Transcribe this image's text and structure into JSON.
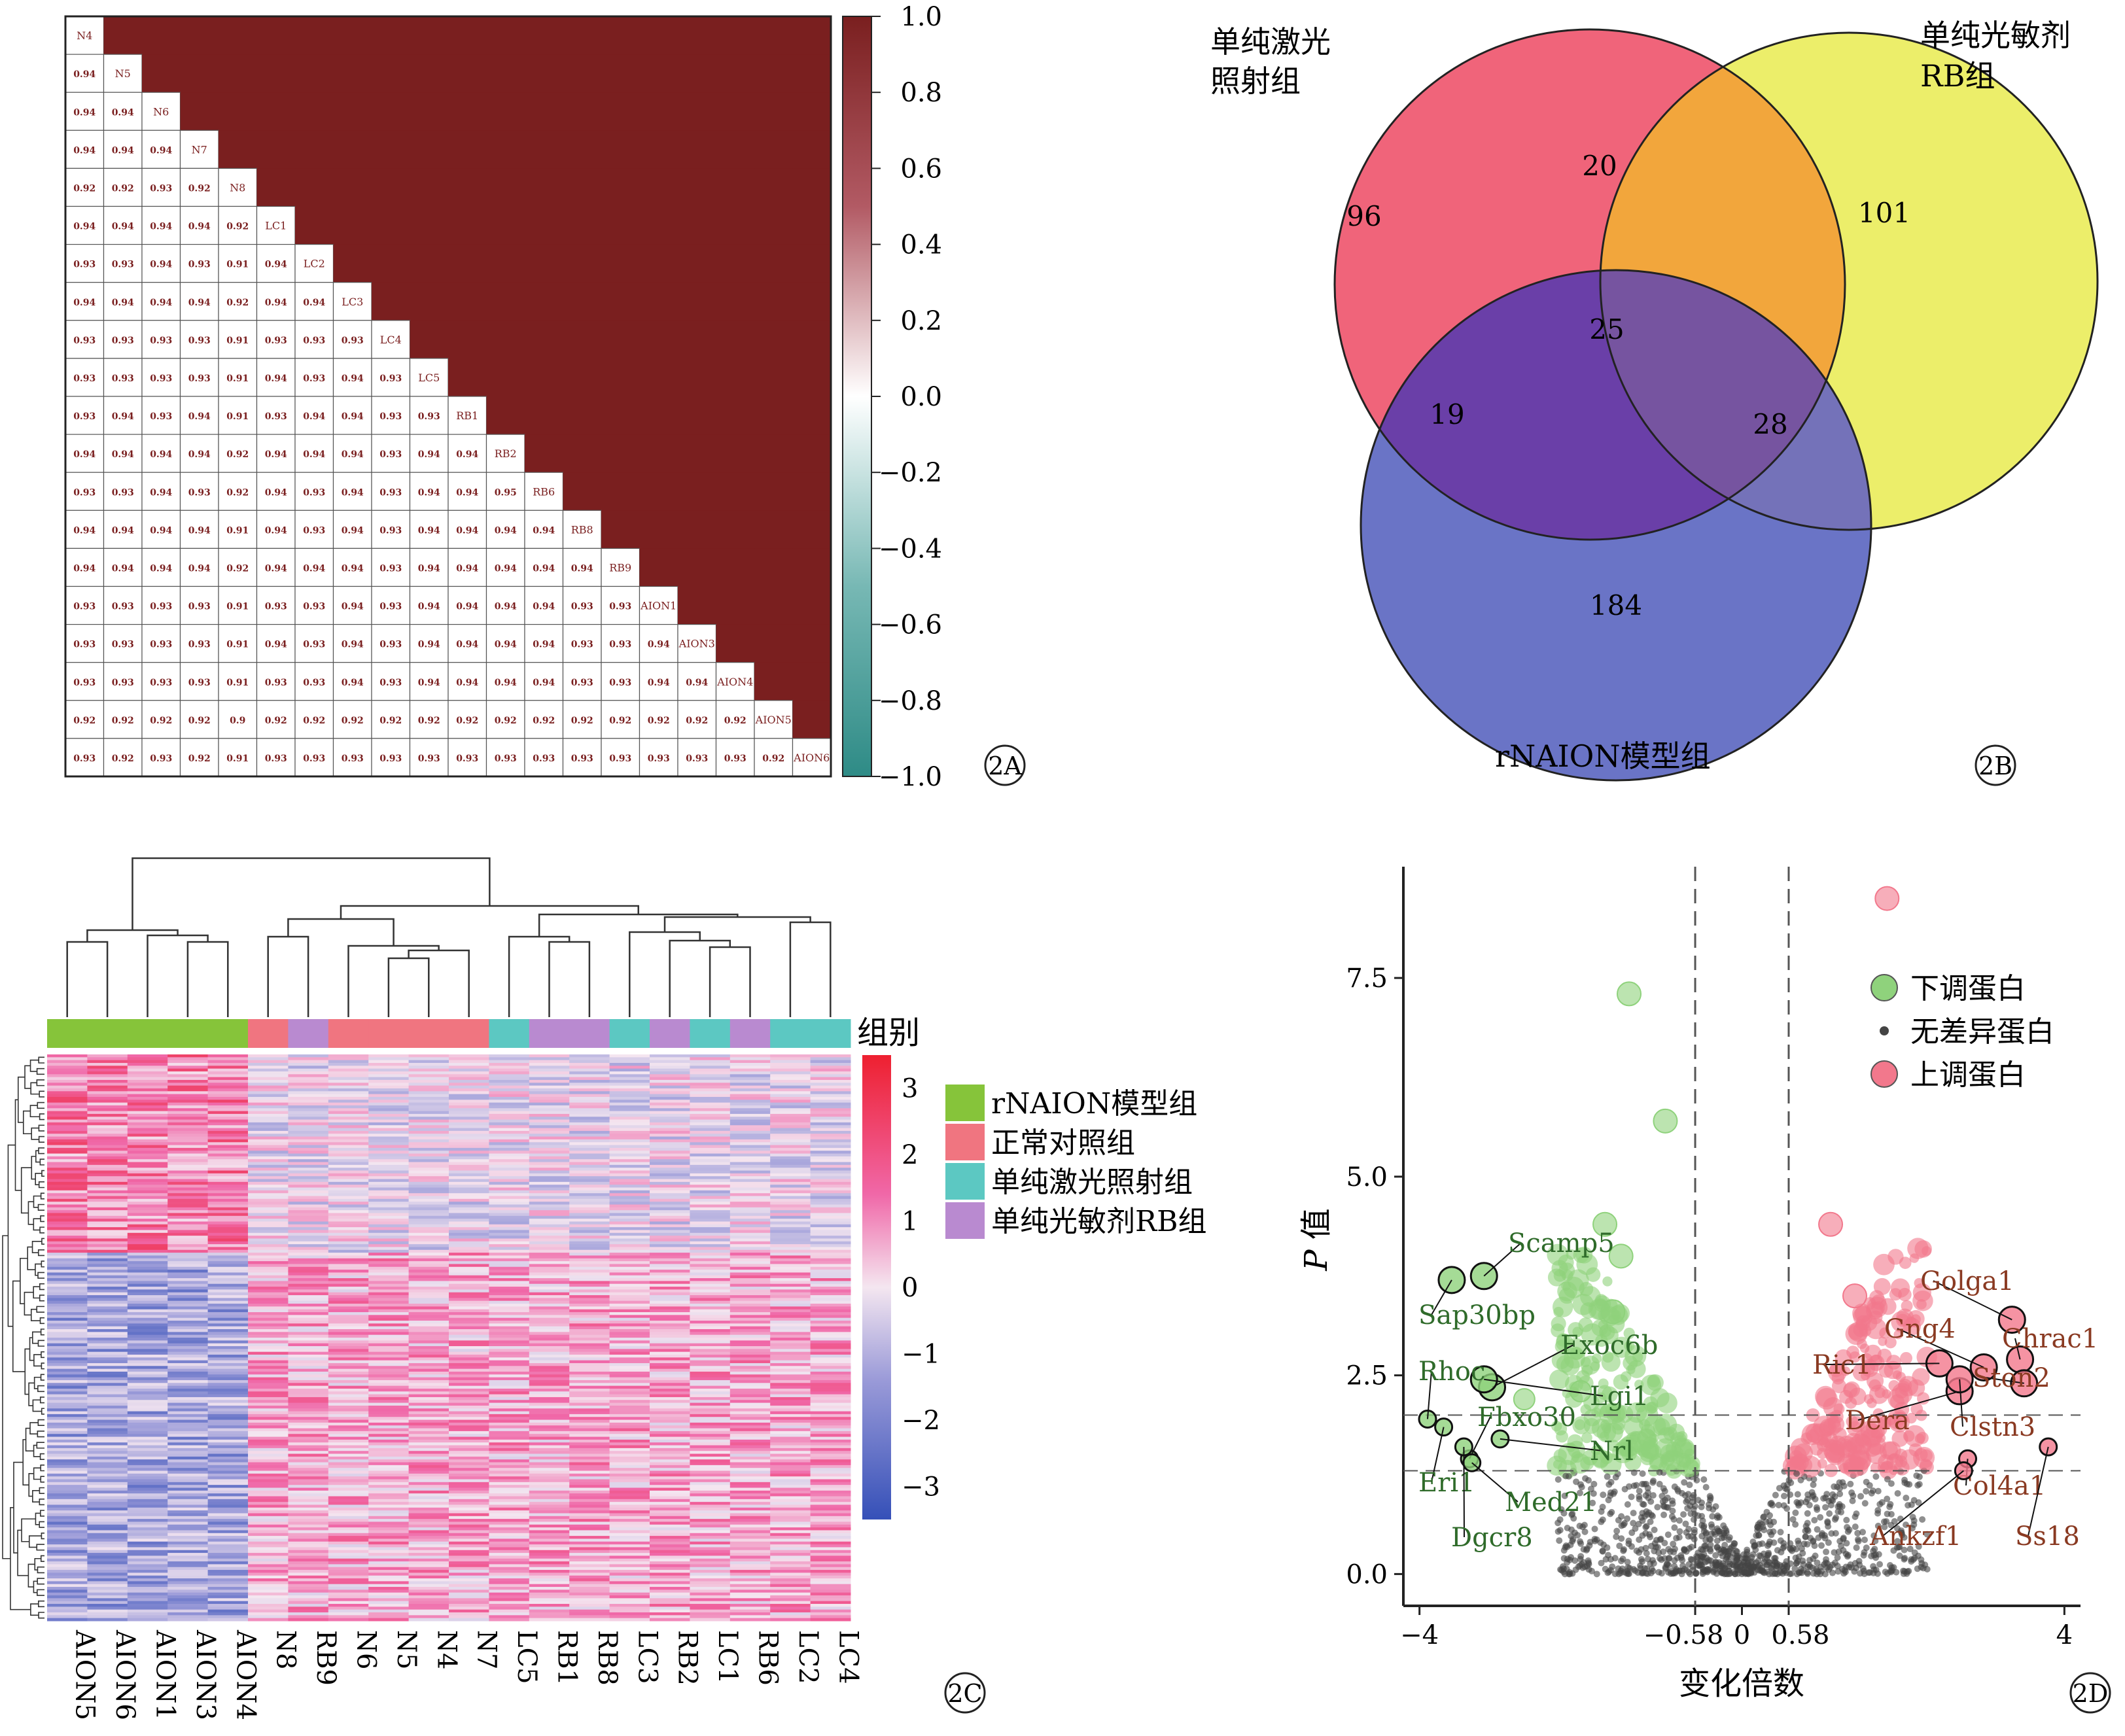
{
  "panels": {
    "A": "2A",
    "B": "2B",
    "C": "2C",
    "D": "2D"
  },
  "chart_data": [
    {
      "panel": "2A",
      "type": "heatmap",
      "samples": [
        "N4",
        "N5",
        "N6",
        "N7",
        "N8",
        "LC1",
        "LC2",
        "LC3",
        "LC4",
        "LC5",
        "RB1",
        "RB2",
        "RB6",
        "RB8",
        "RB9",
        "AION1",
        "AION3",
        "AION4",
        "AION5",
        "AION6"
      ],
      "lower_triangle": [
        [],
        [
          0.94
        ],
        [
          0.94,
          0.94
        ],
        [
          0.94,
          0.94,
          0.94
        ],
        [
          0.92,
          0.92,
          0.93,
          0.92
        ],
        [
          0.94,
          0.94,
          0.94,
          0.94,
          0.92
        ],
        [
          0.93,
          0.93,
          0.94,
          0.93,
          0.91,
          0.94
        ],
        [
          0.94,
          0.94,
          0.94,
          0.94,
          0.92,
          0.94,
          0.94
        ],
        [
          0.93,
          0.93,
          0.93,
          0.93,
          0.91,
          0.93,
          0.93,
          0.93
        ],
        [
          0.93,
          0.93,
          0.93,
          0.93,
          0.91,
          0.94,
          0.93,
          0.94,
          0.93
        ],
        [
          0.93,
          0.94,
          0.93,
          0.94,
          0.91,
          0.93,
          0.94,
          0.94,
          0.93,
          0.93
        ],
        [
          0.94,
          0.94,
          0.94,
          0.94,
          0.92,
          0.94,
          0.94,
          0.94,
          0.93,
          0.94,
          0.94
        ],
        [
          0.93,
          0.93,
          0.94,
          0.93,
          0.92,
          0.94,
          0.93,
          0.94,
          0.93,
          0.94,
          0.94,
          0.95
        ],
        [
          0.94,
          0.94,
          0.94,
          0.94,
          0.91,
          0.94,
          0.93,
          0.94,
          0.93,
          0.94,
          0.94,
          0.94,
          0.94
        ],
        [
          0.94,
          0.94,
          0.94,
          0.94,
          0.92,
          0.94,
          0.94,
          0.94,
          0.93,
          0.94,
          0.94,
          0.94,
          0.94,
          0.94
        ],
        [
          0.93,
          0.93,
          0.93,
          0.93,
          0.91,
          0.93,
          0.93,
          0.94,
          0.93,
          0.94,
          0.94,
          0.94,
          0.94,
          0.93,
          0.93
        ],
        [
          0.93,
          0.93,
          0.93,
          0.93,
          0.91,
          0.94,
          0.93,
          0.94,
          0.93,
          0.94,
          0.94,
          0.94,
          0.94,
          0.93,
          0.93,
          0.94
        ],
        [
          0.93,
          0.93,
          0.93,
          0.93,
          0.91,
          0.93,
          0.93,
          0.94,
          0.93,
          0.94,
          0.94,
          0.94,
          0.94,
          0.93,
          0.93,
          0.94,
          0.94
        ],
        [
          0.92,
          0.92,
          0.92,
          0.92,
          0.9,
          0.92,
          0.92,
          0.92,
          0.92,
          0.92,
          0.92,
          0.92,
          0.92,
          0.92,
          0.92,
          0.92,
          0.92,
          0.92
        ],
        [
          0.93,
          0.92,
          0.93,
          0.92,
          0.91,
          0.93,
          0.93,
          0.93,
          0.93,
          0.93,
          0.93,
          0.93,
          0.93,
          0.93,
          0.93,
          0.93,
          0.93,
          0.93,
          0.92
        ]
      ],
      "upper_value": 1.0,
      "colorbar": {
        "ticks": [
          "1.0",
          "0.8",
          "0.6",
          "0.4",
          "0.2",
          "0.0",
          "−0.2",
          "−0.4",
          "−0.6",
          "−0.8",
          "−1.0"
        ],
        "range": [
          -1,
          1
        ],
        "colors": {
          "high": "#7a1f1f",
          "mid": "#ffffff",
          "low": "#2e8b86"
        }
      }
    },
    {
      "panel": "2B",
      "type": "venn",
      "sets": [
        {
          "name": "单纯激光照射组",
          "name_lines": [
            "单纯激光",
            "照射组"
          ],
          "color": "#f0647a"
        },
        {
          "name": "单纯光敏剂RB组",
          "name_lines": [
            "单纯光敏剂",
            "RB组"
          ],
          "color": "#ecee6a"
        },
        {
          "name": "rNAION模型组",
          "name_lines": [
            "rNAION模型组"
          ],
          "color": "#6a74c6"
        }
      ],
      "regions": {
        "laser_only": "96",
        "rb_only": "101",
        "model_only": "184",
        "laser_rb": "20",
        "laser_model": "19",
        "rb_model": "28",
        "all": "25"
      },
      "region_colors": {
        "laser_rb": "#f2a63c",
        "laser_model": "#6a3fa8",
        "rb_model": "#7472b9",
        "all": "#7654a0"
      }
    },
    {
      "panel": "2C",
      "type": "heatmap",
      "group_title": "组别",
      "columns": [
        "AION5",
        "AION6",
        "AION1",
        "AION3",
        "AION4",
        "N8",
        "RB9",
        "N6",
        "N5",
        "N4",
        "N7",
        "LC5",
        "RB1",
        "RB8",
        "LC3",
        "RB2",
        "LC1",
        "RB6",
        "LC2",
        "LC4"
      ],
      "column_groups": [
        "model",
        "model",
        "model",
        "model",
        "model",
        "control",
        "rb",
        "control",
        "control",
        "control",
        "control",
        "laser",
        "rb",
        "rb",
        "laser",
        "rb",
        "laser",
        "rb",
        "laser",
        "laser"
      ],
      "legend": [
        {
          "key": "model",
          "label": "rNAION模型组",
          "color": "#86c43a"
        },
        {
          "key": "control",
          "label": "正常对照组",
          "color": "#f07580"
        },
        {
          "key": "laser",
          "label": "单纯激光照射组",
          "color": "#5cc8c2"
        },
        {
          "key": "rb",
          "label": "单纯光敏剂RB组",
          "color": "#b98ad0"
        }
      ],
      "colorbar": {
        "ticks": [
          "3",
          "2",
          "1",
          "0",
          "−1",
          "−2",
          "−3"
        ],
        "range": [
          -3.5,
          3.5
        ],
        "colors": {
          "high": "#ee2030",
          "mid": "#f4e6f0",
          "low": "#3550b8"
        }
      }
    },
    {
      "panel": "2D",
      "type": "scatter",
      "xlabel": "变化倍数",
      "ylabel_italic": "P",
      "ylabel_rest": " 值",
      "xticks": [
        "−4",
        "−0.58",
        "0",
        "0.58",
        "4"
      ],
      "yticks": [
        "0.0",
        "2.5",
        "5.0",
        "7.5"
      ],
      "xlim": [
        -4.2,
        4.2
      ],
      "ylim": [
        -0.4,
        8.9
      ],
      "thresholds": {
        "x": [
          -0.58,
          0.58
        ],
        "y": [
          1.3,
          2.0
        ]
      },
      "legend": [
        {
          "key": "down",
          "label": "下调蛋白",
          "color": "#8fd27c"
        },
        {
          "key": "none",
          "label": "无差异蛋白",
          "color": "#444444"
        },
        {
          "key": "up",
          "label": "上调蛋白",
          "color": "#f2788c"
        }
      ],
      "labeled_down": [
        {
          "name": "Scamp5",
          "x": -3.2,
          "y": 3.75,
          "r": 20
        },
        {
          "name": "Sap30bp",
          "x": -3.6,
          "y": 3.7,
          "r": 20
        },
        {
          "name": "Exoc6b",
          "x": -3.1,
          "y": 2.35,
          "r": 20
        },
        {
          "name": "Lgi1",
          "x": -3.2,
          "y": 2.45,
          "r": 20
        },
        {
          "name": "Rhoc",
          "x": -3.9,
          "y": 1.95,
          "r": 13
        },
        {
          "name": "Fbxo30",
          "x": -3.38,
          "y": 1.45,
          "r": 13
        },
        {
          "name": "Nrl",
          "x": -3.0,
          "y": 1.7,
          "r": 13
        },
        {
          "name": "Eri1",
          "x": -3.7,
          "y": 1.85,
          "r": 13
        },
        {
          "name": "Med21",
          "x": -3.35,
          "y": 1.4,
          "r": 13
        },
        {
          "name": "Dgcr8",
          "x": -3.45,
          "y": 1.6,
          "r": 13
        }
      ],
      "labeled_up": [
        {
          "name": "Golga1",
          "x": 3.35,
          "y": 3.2,
          "r": 20
        },
        {
          "name": "Gng4",
          "x": 3.0,
          "y": 2.6,
          "r": 20
        },
        {
          "name": "Chrac1",
          "x": 3.45,
          "y": 2.7,
          "r": 20
        },
        {
          "name": "Ric1",
          "x": 2.45,
          "y": 2.65,
          "r": 20
        },
        {
          "name": "Ston2",
          "x": 3.5,
          "y": 2.4,
          "r": 20
        },
        {
          "name": "Dera",
          "x": 2.7,
          "y": 2.3,
          "r": 20
        },
        {
          "name": "Clstn3",
          "x": 2.7,
          "y": 2.45,
          "r": 20
        },
        {
          "name": "Col4a1",
          "x": 2.8,
          "y": 1.45,
          "r": 13
        },
        {
          "name": "Ankzf1",
          "x": 2.75,
          "y": 1.3,
          "r": 13
        },
        {
          "name": "Ss18",
          "x": 3.8,
          "y": 1.6,
          "r": 13
        }
      ],
      "highlight_points": [
        {
          "group": "up",
          "x": 1.8,
          "y": 8.5,
          "r": 18
        },
        {
          "group": "up",
          "x": 1.1,
          "y": 4.4,
          "r": 18
        },
        {
          "group": "up",
          "x": 1.4,
          "y": 3.5,
          "r": 18
        },
        {
          "group": "down",
          "x": -1.4,
          "y": 7.3,
          "r": 18
        },
        {
          "group": "down",
          "x": -0.95,
          "y": 5.7,
          "r": 18
        },
        {
          "group": "down",
          "x": -1.7,
          "y": 4.4,
          "r": 18
        },
        {
          "group": "down",
          "x": -1.5,
          "y": 4.0,
          "r": 18
        },
        {
          "group": "down",
          "x": -1.6,
          "y": 3.3,
          "r": 18
        },
        {
          "group": "down",
          "x": -2.7,
          "y": 2.2,
          "r": 16
        },
        {
          "group": "down",
          "x": -2.0,
          "y": 2.3,
          "r": 16
        }
      ]
    }
  ]
}
